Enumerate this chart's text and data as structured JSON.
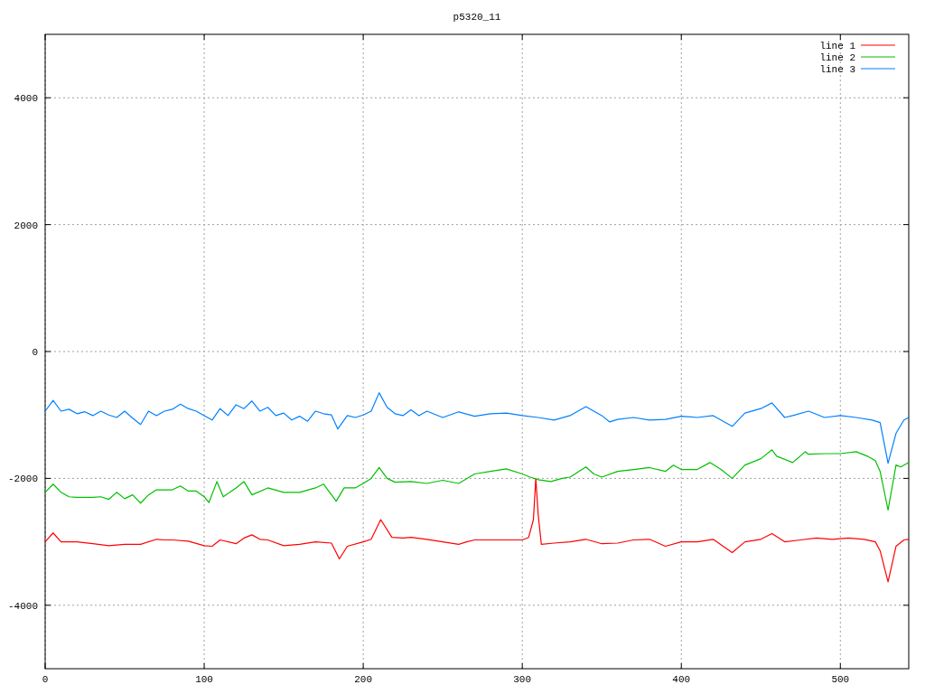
{
  "chart_data": {
    "type": "line",
    "title": "p5320_11",
    "xlim": [
      0,
      543
    ],
    "ylim": [
      -5000,
      5000
    ],
    "xticks": [
      0,
      100,
      200,
      300,
      400,
      500
    ],
    "yticks": [
      -4000,
      -2000,
      0,
      2000,
      4000
    ],
    "grid": true,
    "legend": "top right",
    "line_style": "solid",
    "marker": "none",
    "series": [
      {
        "name": "line 1",
        "color": "#ff0000",
        "x": [
          0,
          5,
          10,
          20,
          30,
          40,
          50,
          60,
          70,
          75,
          80,
          90,
          100,
          105,
          110,
          120,
          125,
          130,
          135,
          140,
          150,
          160,
          170,
          180,
          185,
          190,
          200,
          205,
          211,
          218,
          225,
          230,
          240,
          250,
          260,
          265,
          270,
          280,
          290,
          300,
          304,
          307,
          308.5,
          310,
          312,
          320,
          330,
          340,
          350,
          360,
          370,
          380,
          390,
          400,
          410,
          420,
          432,
          440,
          450,
          457,
          465,
          475,
          485,
          495,
          505,
          515,
          522,
          525,
          530,
          535,
          540,
          543
        ],
        "values": [
          -3000,
          -2860,
          -3000,
          -3000,
          -3030,
          -3060,
          -3040,
          -3040,
          -2960,
          -2970,
          -2970,
          -2990,
          -3060,
          -3070,
          -2970,
          -3030,
          -2940,
          -2890,
          -2960,
          -2970,
          -3060,
          -3040,
          -3000,
          -3020,
          -3270,
          -3070,
          -3000,
          -2960,
          -2650,
          -2930,
          -2940,
          -2930,
          -2960,
          -3000,
          -3040,
          -3000,
          -2970,
          -2970,
          -2970,
          -2970,
          -2930,
          -2650,
          -2000,
          -2570,
          -3040,
          -3020,
          -3000,
          -2960,
          -3030,
          -3020,
          -2970,
          -2960,
          -3070,
          -3000,
          -3000,
          -2960,
          -3170,
          -3000,
          -2960,
          -2870,
          -3000,
          -2970,
          -2940,
          -2960,
          -2940,
          -2960,
          -3000,
          -3140,
          -3630,
          -3070,
          -2970,
          -2960
        ]
      },
      {
        "name": "line 2",
        "color": "#00c000",
        "x": [
          0,
          5,
          10,
          15,
          20,
          30,
          35,
          40,
          45,
          50,
          55,
          60,
          65,
          70,
          80,
          85,
          90,
          95,
          100,
          103,
          108,
          112,
          120,
          125,
          130,
          140,
          150,
          160,
          170,
          175,
          183,
          188,
          195,
          200,
          205,
          210,
          215,
          220,
          230,
          240,
          250,
          260,
          270,
          280,
          290,
          300,
          305,
          310,
          318,
          325,
          330,
          340,
          345,
          350,
          360,
          370,
          380,
          390,
          395,
          400,
          410,
          418,
          425,
          432,
          440,
          450,
          457,
          460,
          470,
          478,
          480,
          490,
          500,
          510,
          517,
          522,
          525,
          530,
          535,
          538,
          543
        ],
        "values": [
          -2220,
          -2090,
          -2220,
          -2290,
          -2300,
          -2300,
          -2290,
          -2330,
          -2220,
          -2320,
          -2260,
          -2390,
          -2260,
          -2180,
          -2180,
          -2120,
          -2200,
          -2200,
          -2290,
          -2380,
          -2050,
          -2290,
          -2150,
          -2050,
          -2260,
          -2150,
          -2220,
          -2220,
          -2150,
          -2090,
          -2360,
          -2150,
          -2150,
          -2080,
          -2000,
          -1830,
          -2000,
          -2060,
          -2050,
          -2080,
          -2030,
          -2080,
          -1930,
          -1890,
          -1850,
          -1930,
          -1980,
          -2020,
          -2050,
          -2000,
          -1980,
          -1820,
          -1930,
          -1980,
          -1890,
          -1860,
          -1830,
          -1890,
          -1790,
          -1860,
          -1860,
          -1750,
          -1860,
          -2000,
          -1790,
          -1690,
          -1550,
          -1650,
          -1750,
          -1580,
          -1620,
          -1610,
          -1610,
          -1580,
          -1650,
          -1720,
          -1890,
          -2500,
          -1790,
          -1820,
          -1750
        ]
      },
      {
        "name": "line 3",
        "color": "#0080ff",
        "x": [
          0,
          5,
          10,
          15,
          20,
          25,
          30,
          35,
          40,
          45,
          50,
          55,
          60,
          65,
          70,
          75,
          80,
          85,
          90,
          95,
          100,
          105,
          110,
          115,
          120,
          125,
          130,
          135,
          140,
          145,
          150,
          155,
          160,
          165,
          170,
          175,
          180,
          184,
          190,
          195,
          200,
          205,
          210,
          215,
          220,
          225,
          230,
          235,
          240,
          250,
          260,
          270,
          280,
          290,
          300,
          310,
          320,
          330,
          340,
          350,
          355,
          360,
          370,
          380,
          390,
          400,
          410,
          420,
          432,
          440,
          450,
          457,
          465,
          470,
          480,
          490,
          500,
          510,
          520,
          525,
          530,
          535,
          540,
          543
        ],
        "values": [
          -940,
          -770,
          -940,
          -910,
          -980,
          -950,
          -1010,
          -940,
          -1000,
          -1040,
          -940,
          -1050,
          -1150,
          -940,
          -1010,
          -940,
          -910,
          -830,
          -900,
          -940,
          -1010,
          -1080,
          -900,
          -1010,
          -840,
          -900,
          -780,
          -940,
          -880,
          -1010,
          -970,
          -1080,
          -1020,
          -1100,
          -940,
          -980,
          -1000,
          -1220,
          -1010,
          -1040,
          -1000,
          -940,
          -650,
          -880,
          -980,
          -1010,
          -920,
          -1010,
          -940,
          -1040,
          -950,
          -1020,
          -980,
          -970,
          -1010,
          -1040,
          -1080,
          -1010,
          -870,
          -1010,
          -1110,
          -1070,
          -1040,
          -1080,
          -1070,
          -1020,
          -1040,
          -1010,
          -1180,
          -970,
          -900,
          -810,
          -1040,
          -1010,
          -940,
          -1040,
          -1010,
          -1040,
          -1080,
          -1120,
          -1760,
          -1290,
          -1080,
          -1040
        ]
      }
    ]
  }
}
